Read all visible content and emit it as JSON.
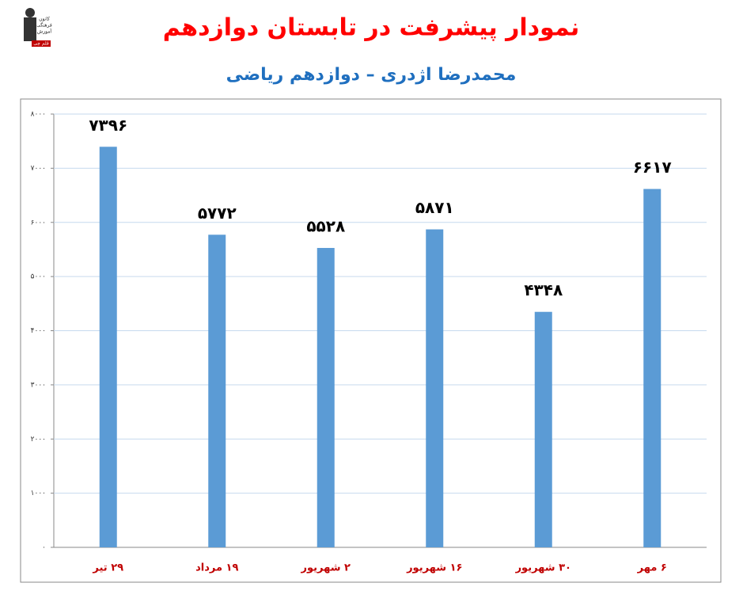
{
  "logo": [
    "کانون",
    "فرهنگی",
    "آموزش",
    "قلم چی"
  ],
  "chart_data": {
    "type": "bar",
    "title": "نمودار پیشرفت در تابستان دوازدهم",
    "subtitle": "محمدرضا اژدری – دوازدهم ریاضی",
    "categories": [
      "۲۹ تیر",
      "۱۹ مرداد",
      "۲ شهریور",
      "۱۶ شهریور",
      "۳۰ شهریور",
      "۶ مهر"
    ],
    "values": [
      7396,
      5772,
      5528,
      5871,
      4348,
      6617
    ],
    "value_labels": [
      "۷۳۹۶",
      "۵۷۷۲",
      "۵۵۲۸",
      "۵۸۷۱",
      "۴۳۴۸",
      "۶۶۱۷"
    ],
    "color": "#5b9bd5",
    "ylim": [
      0,
      8000
    ],
    "yticks": [
      {
        "value": 0,
        "label": "۰"
      },
      {
        "value": 1000,
        "label": "۱۰۰۰"
      },
      {
        "value": 2000,
        "label": "۲۰۰۰"
      },
      {
        "value": 3000,
        "label": "۳۰۰۰"
      },
      {
        "value": 4000,
        "label": "۴۰۰۰"
      },
      {
        "value": 5000,
        "label": "۵۰۰۰"
      },
      {
        "value": 6000,
        "label": "۶۰۰۰"
      },
      {
        "value": 7000,
        "label": "۷۰۰۰"
      },
      {
        "value": 8000,
        "label": "۸۰۰۰"
      }
    ],
    "grid": true
  }
}
